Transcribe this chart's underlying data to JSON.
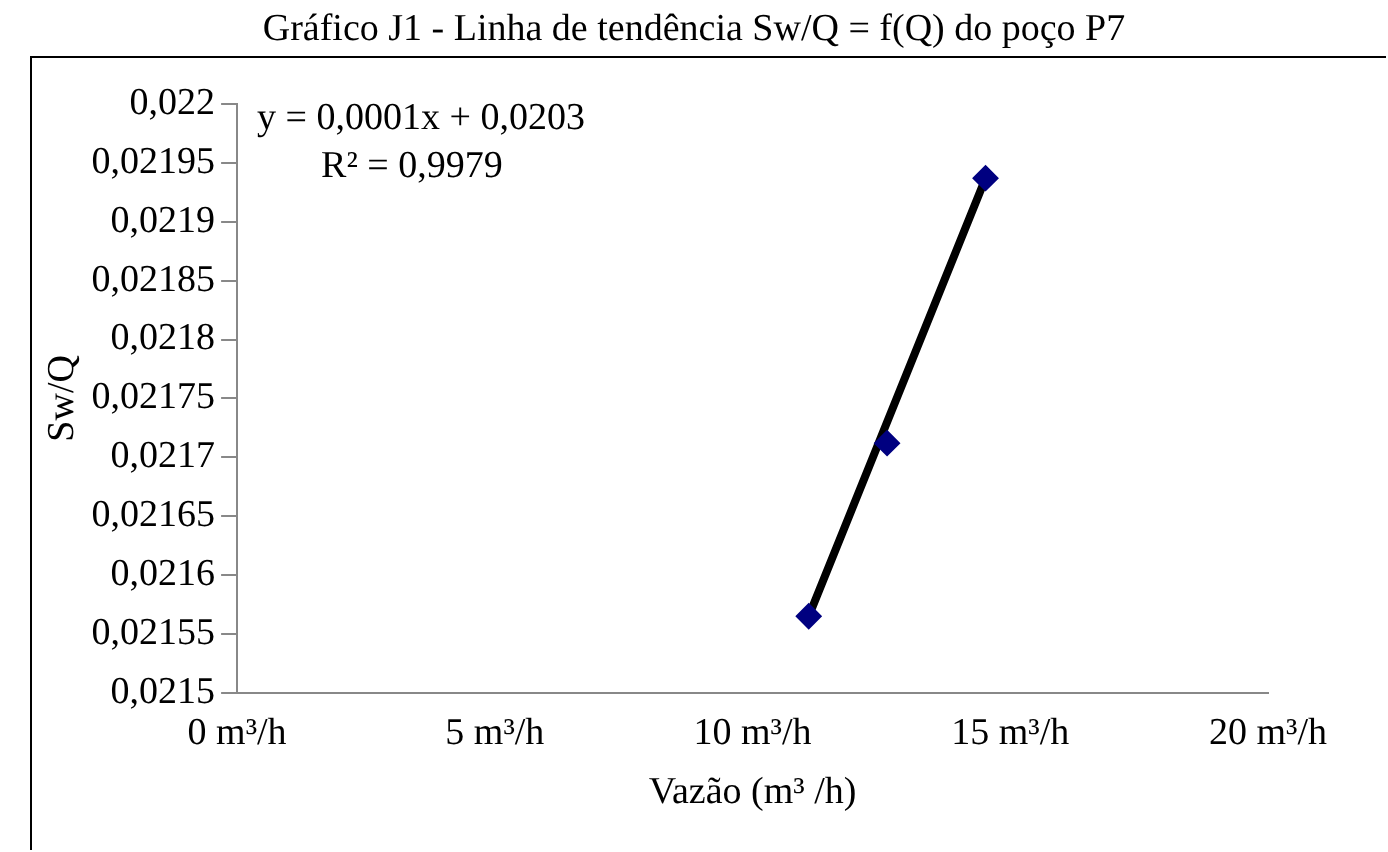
{
  "chart_data": {
    "type": "scatter",
    "title": "Gráfico J1 - Linha de tendência Sw/Q = f(Q) do poço P7",
    "xlabel": "Vazão (m³ /h)",
    "ylabel": "Sw/Q",
    "annotations": [
      "y = 0,0001x + 0,0203",
      "R² = 0,9979"
    ],
    "xlim": [
      0,
      20
    ],
    "xticks": [
      {
        "value": 0,
        "label": "0 m³/h"
      },
      {
        "value": 5,
        "label": "5 m³/h"
      },
      {
        "value": 10,
        "label": "10 m³/h"
      },
      {
        "value": 15,
        "label": "15 m³/h"
      },
      {
        "value": 20,
        "label": "20 m³/h"
      }
    ],
    "ylim": [
      0.0215,
      0.022
    ],
    "yticks": [
      {
        "value": 0.0215,
        "label": "0,0215"
      },
      {
        "value": 0.02155,
        "label": "0,02155"
      },
      {
        "value": 0.0216,
        "label": "0,0216"
      },
      {
        "value": 0.02165,
        "label": "0,02165"
      },
      {
        "value": 0.0217,
        "label": "0,0217"
      },
      {
        "value": 0.02175,
        "label": "0,02175"
      },
      {
        "value": 0.0218,
        "label": "0,0218"
      },
      {
        "value": 0.02185,
        "label": "0,02185"
      },
      {
        "value": 0.0219,
        "label": "0,0219"
      },
      {
        "value": 0.02195,
        "label": "0,02195"
      },
      {
        "value": 0.022,
        "label": "0,022"
      }
    ],
    "grid": false,
    "legend": false,
    "series": [
      {
        "type": "line",
        "color": "#000000",
        "x": [
          11.09,
          14.52
        ],
        "values": [
          0.021565,
          0.021937
        ],
        "marker": "none"
      },
      {
        "type": "scatter",
        "color": "#000080",
        "x": [
          11.09,
          12.61,
          14.52
        ],
        "values": [
          0.021565,
          0.021712,
          0.021937
        ],
        "marker": "diamond"
      }
    ]
  }
}
